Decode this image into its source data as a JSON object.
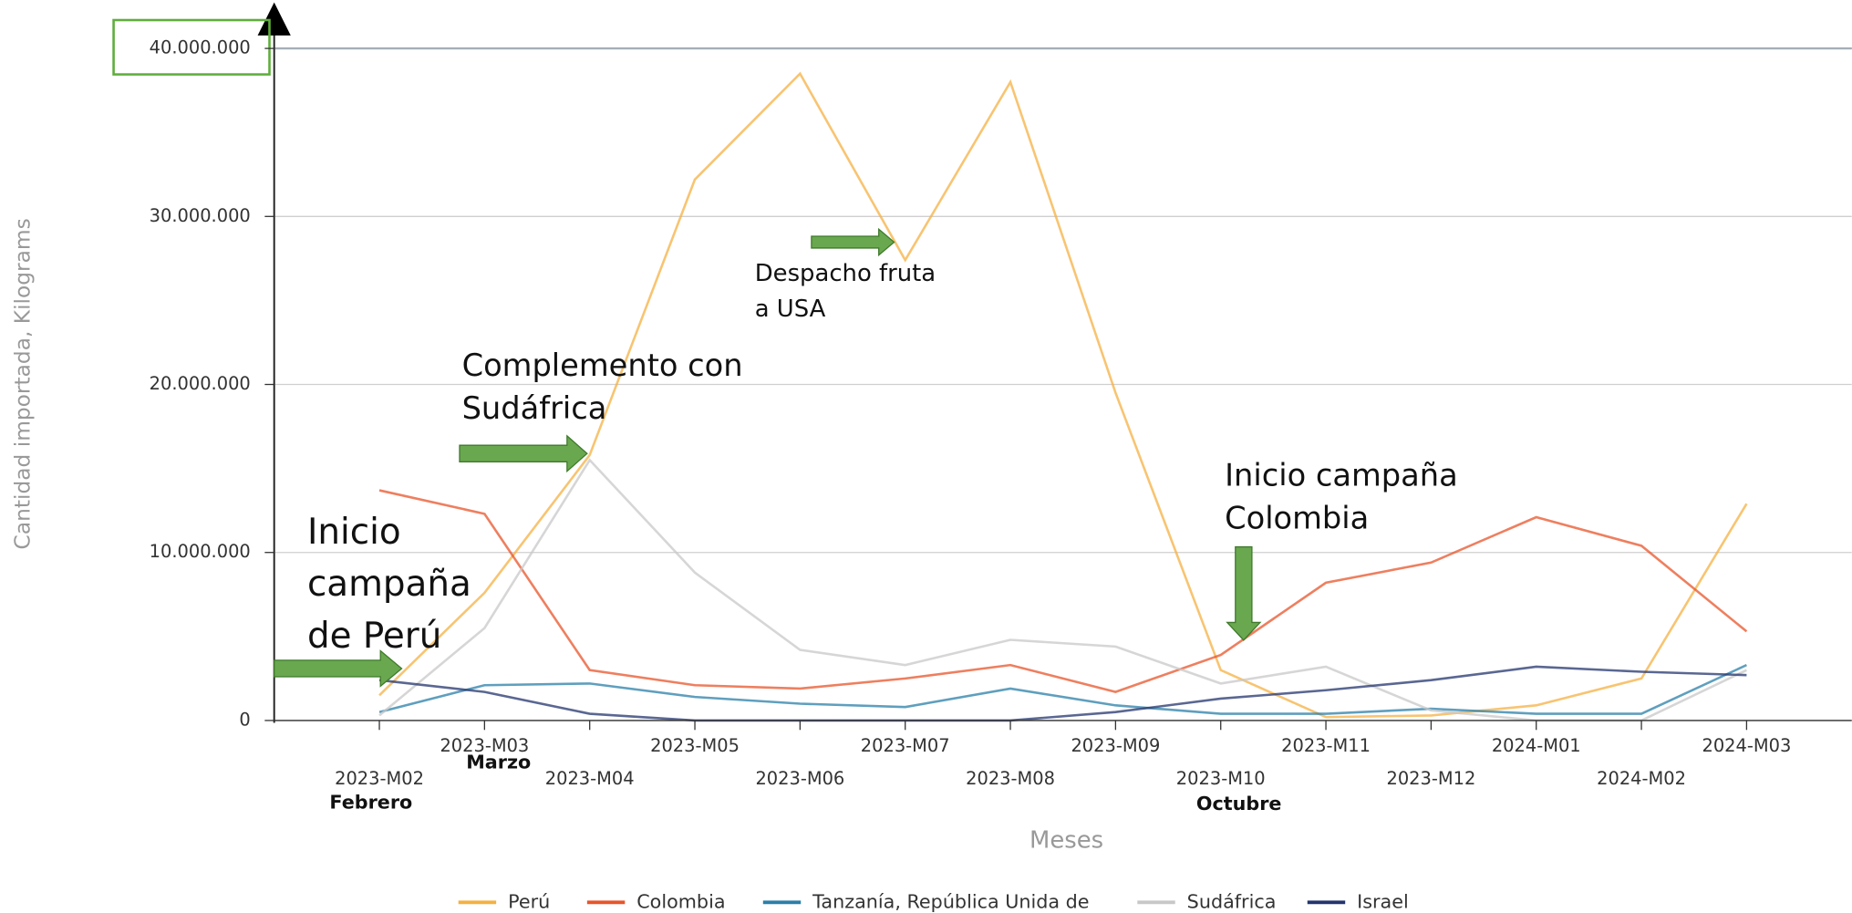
{
  "chart_data": {
    "type": "line",
    "x_label": "Meses",
    "y_label": "Cantidad importada, Kilograms",
    "categories": [
      "2023-M02",
      "2023-M03",
      "2023-M04",
      "2023-M05",
      "2023-M06",
      "2023-M07",
      "2023-M08",
      "2023-M09",
      "2023-M10",
      "2023-M11",
      "2023-M12",
      "2024-M01",
      "2024-M02",
      "2024-M03"
    ],
    "ylim": [
      0,
      40000000
    ],
    "yticks": [
      0,
      {
        "value": 10000000,
        "label": "10.000.000"
      },
      {
        "value": 20000000,
        "label": "20.000.000"
      },
      {
        "value": 30000000,
        "label": "30.000.000"
      },
      {
        "value": 40000000,
        "label": "40.000.000"
      }
    ],
    "grid": true,
    "legend": "bottom",
    "series": [
      {
        "name": "Perú",
        "color": "#f5b041",
        "values": [
          1500000,
          7600000,
          15800000,
          32200000,
          38500000,
          27400000,
          38000000,
          19500000,
          3000000,
          200000,
          300000,
          900000,
          2500000,
          12900000
        ]
      },
      {
        "name": "Colombia",
        "color": "#e8542a",
        "values": [
          13700000,
          12300000,
          3000000,
          2100000,
          1900000,
          2500000,
          3300000,
          1700000,
          3900000,
          8200000,
          9400000,
          12100000,
          10400000,
          5300000
        ]
      },
      {
        "name": "Tanzanía, República Unida de",
        "color": "#2a7fa8",
        "values": [
          500000,
          2100000,
          2200000,
          1400000,
          1000000,
          800000,
          1900000,
          900000,
          400000,
          400000,
          700000,
          400000,
          400000,
          3300000
        ]
      },
      {
        "name": "Sudáfrica",
        "color": "#c8c8c8",
        "values": [
          300000,
          5500000,
          15500000,
          8800000,
          4200000,
          3300000,
          4800000,
          4400000,
          2200000,
          3200000,
          600000,
          0,
          0,
          3000000
        ]
      },
      {
        "name": "Israel",
        "color": "#23346e",
        "values": [
          2400000,
          1700000,
          400000,
          0,
          0,
          0,
          0,
          500000,
          1300000,
          1800000,
          2400000,
          3200000,
          2900000,
          2700000
        ]
      }
    ],
    "annotations": [
      [
        "Inicio",
        "campaña",
        "de Perú"
      ],
      [
        "Complemento con",
        "Sudáfrica"
      ],
      [
        "Despacho fruta",
        "a USA"
      ],
      [
        "Inicio campaña",
        "Colombia"
      ],
      [
        "Febrero"
      ],
      [
        "Marzo"
      ],
      [
        "Octubre"
      ]
    ]
  }
}
